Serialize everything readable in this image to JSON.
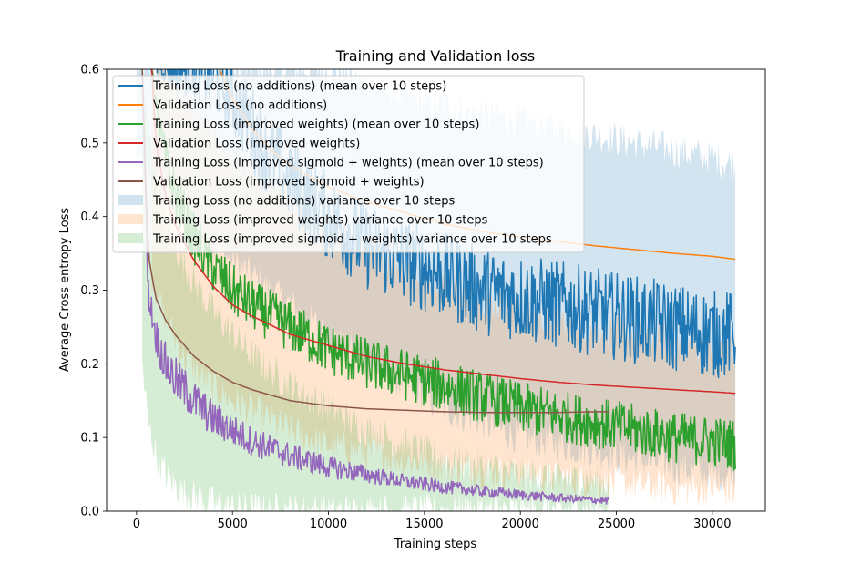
{
  "chart_data": {
    "type": "line",
    "title": "Training and Validation loss",
    "xlabel": "Training steps",
    "ylabel": "Average Cross entropy Loss",
    "xlim": [
      -1560,
      32760
    ],
    "ylim": [
      0.0,
      0.6
    ],
    "xticks": [
      0,
      5000,
      10000,
      15000,
      20000,
      25000,
      30000
    ],
    "xtick_labels": [
      "0",
      "5000",
      "10000",
      "15000",
      "20000",
      "25000",
      "30000"
    ],
    "yticks": [
      0.0,
      0.1,
      0.2,
      0.3,
      0.4,
      0.5,
      0.6
    ],
    "ytick_labels": [
      "0.0",
      "0.1",
      "0.2",
      "0.3",
      "0.4",
      "0.5",
      "0.6"
    ],
    "grid": false,
    "legend_position": "top-left",
    "legend": [
      {
        "label": "Training Loss (no additions) (mean over 10 steps)",
        "kind": "line",
        "color": "#1f77b4"
      },
      {
        "label": "Validation Loss (no additions)",
        "kind": "line",
        "color": "#ff7f0e"
      },
      {
        "label": "Training Loss (improved weights) (mean over 10 steps)",
        "kind": "line",
        "color": "#2ca02c"
      },
      {
        "label": "Validation Loss (improved weights)",
        "kind": "line",
        "color": "#d62728"
      },
      {
        "label": "Training Loss (improved sigmoid + weights) (mean over 10 steps)",
        "kind": "line",
        "color": "#9467bd"
      },
      {
        "label": "Validation Loss (improved sigmoid + weights)",
        "kind": "line",
        "color": "#8c564b"
      },
      {
        "label": "Training Loss (no additions) variance over 10 steps",
        "kind": "band",
        "color": "#1f77b4"
      },
      {
        "label": "Training Loss (improved weights) variance over 10 steps",
        "kind": "band",
        "color": "#ff7f0e"
      },
      {
        "label": "Training Loss (improved sigmoid + weights) variance over 10 steps",
        "kind": "band",
        "color": "#2ca02c"
      }
    ],
    "series": [
      {
        "name": "Training Loss (no additions) variance over 10 steps",
        "kind": "band",
        "color": "#1f77b4",
        "x": [
          0,
          1000,
          2000,
          3000,
          4000,
          5000,
          6000,
          7000,
          8000,
          10000,
          12000,
          14000,
          16000,
          18000,
          20000,
          22000,
          24000,
          26000,
          28000,
          30000,
          31200
        ],
        "lower": [
          0.48,
          0.44,
          0.41,
          0.38,
          0.36,
          0.34,
          0.32,
          0.3,
          0.28,
          0.24,
          0.2,
          0.17,
          0.14,
          0.12,
          0.1,
          0.09,
          0.08,
          0.07,
          0.06,
          0.05,
          0.05
        ],
        "upper": [
          0.6,
          0.6,
          0.6,
          0.6,
          0.6,
          0.6,
          0.6,
          0.6,
          0.6,
          0.6,
          0.58,
          0.56,
          0.55,
          0.54,
          0.53,
          0.52,
          0.51,
          0.5,
          0.49,
          0.48,
          0.47
        ]
      },
      {
        "name": "Training Loss (improved weights) variance over 10 steps",
        "kind": "band",
        "color": "#ff7f0e",
        "x": [
          800,
          1500,
          2500,
          3500,
          5000,
          6500,
          8000,
          10000,
          12000,
          14000,
          16000,
          18000,
          20000,
          22000,
          24000,
          26000,
          28000,
          30000,
          31200
        ],
        "lower": [
          0.32,
          0.26,
          0.21,
          0.18,
          0.15,
          0.13,
          0.11,
          0.09,
          0.08,
          0.07,
          0.06,
          0.055,
          0.05,
          0.045,
          0.04,
          0.035,
          0.03,
          0.03,
          0.025
        ],
        "upper": [
          0.6,
          0.6,
          0.56,
          0.52,
          0.48,
          0.45,
          0.42,
          0.39,
          0.36,
          0.33,
          0.31,
          0.29,
          0.27,
          0.26,
          0.25,
          0.24,
          0.23,
          0.22,
          0.22
        ]
      },
      {
        "name": "Training Loss (improved sigmoid + weights) variance over 10 steps",
        "kind": "band",
        "color": "#2ca02c",
        "x": [
          300,
          600,
          1000,
          1500,
          2000,
          3000,
          4000,
          5000,
          6000,
          8000,
          10000,
          12000,
          14000,
          16000,
          18000,
          20000,
          22000,
          24000,
          24600
        ],
        "lower": [
          0.2,
          0.12,
          0.08,
          0.05,
          0.035,
          0.02,
          0.01,
          0.005,
          0.003,
          0.001,
          0.0,
          0.0,
          0.0,
          0.0,
          0.0,
          0.0,
          0.0,
          0.0,
          0.0
        ],
        "upper": [
          0.6,
          0.52,
          0.46,
          0.4,
          0.36,
          0.31,
          0.27,
          0.24,
          0.21,
          0.17,
          0.14,
          0.11,
          0.09,
          0.07,
          0.06,
          0.05,
          0.045,
          0.04,
          0.04
        ]
      },
      {
        "name": "Training Loss (no additions) (mean over 10 steps)",
        "kind": "line",
        "color": "#1f77b4",
        "x": [
          0,
          1000,
          2000,
          3000,
          4000,
          5000,
          6000,
          7000,
          8000,
          10000,
          12000,
          14000,
          16000,
          18000,
          20000,
          22000,
          24000,
          26000,
          28000,
          30000,
          31200
        ],
        "y": [
          0.62,
          0.61,
          0.6,
          0.6,
          0.59,
          0.56,
          0.52,
          0.48,
          0.45,
          0.4,
          0.36,
          0.34,
          0.32,
          0.3,
          0.29,
          0.28,
          0.27,
          0.26,
          0.25,
          0.24,
          0.24
        ],
        "noise": [
          0.0,
          0.02,
          0.03,
          0.04,
          0.05,
          0.05,
          0.06,
          0.06,
          0.06,
          0.06,
          0.06,
          0.06,
          0.06,
          0.06,
          0.06,
          0.06,
          0.06,
          0.06,
          0.06,
          0.06,
          0.06
        ]
      },
      {
        "name": "Validation Loss (no additions)",
        "kind": "line",
        "color": "#ff7f0e",
        "x": [
          4000,
          5000,
          6000,
          7000,
          8000,
          10000,
          12000,
          14000,
          16000,
          18000,
          20000,
          22000,
          24000,
          26000,
          28000,
          30000,
          31200
        ],
        "y": [
          0.62,
          0.56,
          0.52,
          0.49,
          0.47,
          0.44,
          0.42,
          0.405,
          0.39,
          0.38,
          0.372,
          0.366,
          0.36,
          0.355,
          0.35,
          0.346,
          0.342
        ]
      },
      {
        "name": "Training Loss (improved weights) (mean over 10 steps)",
        "kind": "line",
        "color": "#2ca02c",
        "x": [
          800,
          1000,
          1500,
          2000,
          2500,
          3000,
          4000,
          5000,
          6000,
          8000,
          10000,
          12000,
          14000,
          16000,
          18000,
          20000,
          22000,
          24000,
          26000,
          28000,
          30000,
          31200
        ],
        "y": [
          0.6,
          0.55,
          0.48,
          0.43,
          0.4,
          0.37,
          0.33,
          0.3,
          0.28,
          0.25,
          0.22,
          0.2,
          0.185,
          0.17,
          0.155,
          0.14,
          0.13,
          0.12,
          0.11,
          0.1,
          0.095,
          0.09
        ],
        "noise": [
          0.0,
          0.02,
          0.03,
          0.035,
          0.035,
          0.035,
          0.035,
          0.035,
          0.035,
          0.035,
          0.035,
          0.035,
          0.035,
          0.035,
          0.035,
          0.035,
          0.035,
          0.035,
          0.035,
          0.035,
          0.035,
          0.035
        ]
      },
      {
        "name": "Validation Loss (improved weights)",
        "kind": "line",
        "color": "#d62728",
        "x": [
          800,
          1000,
          1500,
          2000,
          3000,
          4000,
          5000,
          6000,
          8000,
          10000,
          12000,
          14000,
          16000,
          18000,
          20000,
          22000,
          24000,
          26000,
          28000,
          30000,
          31200
        ],
        "y": [
          0.6,
          0.5,
          0.43,
          0.39,
          0.34,
          0.305,
          0.28,
          0.265,
          0.24,
          0.225,
          0.21,
          0.2,
          0.192,
          0.186,
          0.18,
          0.175,
          0.171,
          0.168,
          0.165,
          0.162,
          0.16
        ]
      },
      {
        "name": "Training Loss (improved sigmoid + weights) (mean over 10 steps)",
        "kind": "line",
        "color": "#9467bd",
        "x": [
          300,
          600,
          1000,
          1500,
          2000,
          2500,
          3000,
          4000,
          5000,
          6000,
          8000,
          10000,
          12000,
          14000,
          16000,
          18000,
          20000,
          22000,
          24000,
          24600
        ],
        "y": [
          0.6,
          0.3,
          0.24,
          0.2,
          0.18,
          0.165,
          0.15,
          0.125,
          0.11,
          0.095,
          0.075,
          0.06,
          0.05,
          0.04,
          0.033,
          0.027,
          0.022,
          0.018,
          0.015,
          0.014
        ],
        "noise": [
          0.0,
          0.02,
          0.025,
          0.03,
          0.03,
          0.03,
          0.028,
          0.025,
          0.022,
          0.02,
          0.018,
          0.015,
          0.012,
          0.01,
          0.009,
          0.008,
          0.007,
          0.006,
          0.005,
          0.005
        ]
      },
      {
        "name": "Validation Loss (improved sigmoid + weights)",
        "kind": "line",
        "color": "#8c564b",
        "x": [
          300,
          600,
          1000,
          1500,
          2000,
          3000,
          4000,
          5000,
          6000,
          8000,
          10000,
          12000,
          14000,
          16000,
          18000,
          20000,
          22000,
          24000,
          24600
        ],
        "y": [
          0.6,
          0.35,
          0.29,
          0.26,
          0.24,
          0.21,
          0.19,
          0.175,
          0.165,
          0.15,
          0.143,
          0.139,
          0.137,
          0.135,
          0.134,
          0.134,
          0.134,
          0.135,
          0.135
        ]
      }
    ]
  }
}
